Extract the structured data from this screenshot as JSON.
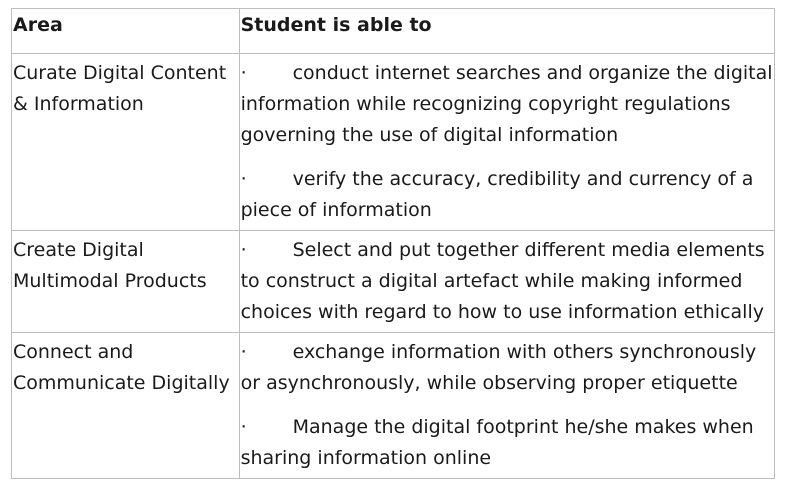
{
  "table": {
    "headers": [
      "Area",
      "Student is able to"
    ],
    "bullet_glyph": "·",
    "rows": [
      {
        "area": "Curate Digital Content & Information",
        "bullets": [
          "conduct internet searches and organize the digital information while recognizing copyright regulations governing the use of digital information",
          "verify the accuracy, credibility and currency of a piece of information"
        ]
      },
      {
        "area": "Create Digital Multimodal Products",
        "bullets": [
          "Select and put together different media elements to construct a digital artefact while making informed choices with regard to how to use information ethically"
        ]
      },
      {
        "area": "Connect and Communicate Digitally",
        "bullets": [
          "exchange information with others synchronously or asynchronously, while observing proper etiquette",
          "Manage the digital footprint he/she makes when sharing information online"
        ]
      }
    ]
  }
}
